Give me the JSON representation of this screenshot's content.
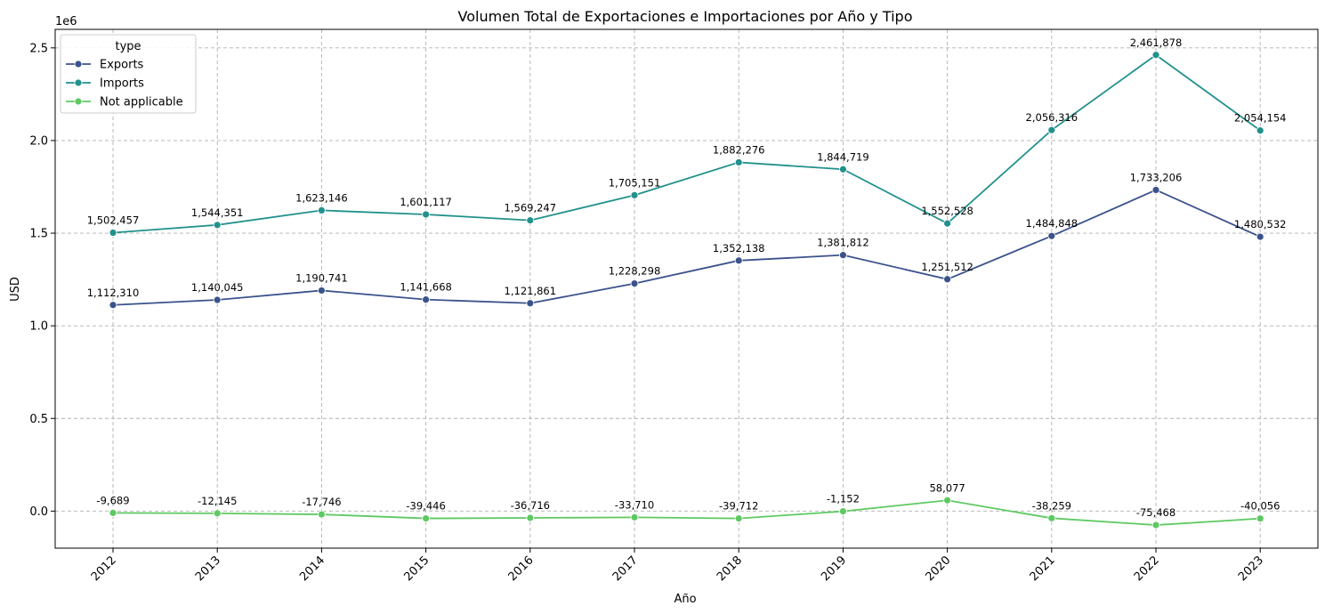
{
  "chart_data": {
    "type": "line",
    "title": "Volumen Total de Exportaciones e Importaciones por Año y Tipo",
    "xlabel": "Año",
    "ylabel": "USD",
    "y_offset_label": "1e6",
    "categories": [
      "2012",
      "2013",
      "2014",
      "2015",
      "2016",
      "2017",
      "2018",
      "2019",
      "2020",
      "2021",
      "2022",
      "2023"
    ],
    "ylim": [
      -200000,
      2600000
    ],
    "y_ticks": [
      0,
      500000,
      1000000,
      1500000,
      2000000,
      2500000
    ],
    "y_tick_labels": [
      "0.0",
      "0.5",
      "1.0",
      "1.5",
      "2.0",
      "2.5"
    ],
    "grid": true,
    "legend": {
      "title": "type",
      "placement": "top-left"
    },
    "series": [
      {
        "name": "Exports",
        "color": "#3b528b",
        "values": [
          1112310,
          1140045,
          1190741,
          1141668,
          1121861,
          1228298,
          1352138,
          1381812,
          1251512,
          1484848,
          1733206,
          1480532
        ],
        "labels": [
          "1,112,310",
          "1,140,045",
          "1,190,741",
          "1,141,668",
          "1,121,861",
          "1,228,298",
          "1,352,138",
          "1,381,812",
          "1,251,512",
          "1,484,848",
          "1,733,206",
          "1,480,532"
        ]
      },
      {
        "name": "Imports",
        "color": "#21918c",
        "values": [
          1502457,
          1544351,
          1623146,
          1601117,
          1569247,
          1705151,
          1882276,
          1844719,
          1552528,
          2056316,
          2461878,
          2054154
        ],
        "labels": [
          "1,502,457",
          "1,544,351",
          "1,623,146",
          "1,601,117",
          "1,569,247",
          "1,705,151",
          "1,882,276",
          "1,844,719",
          "1,552,528",
          "2,056,316",
          "2,461,878",
          "2,054,154"
        ]
      },
      {
        "name": "Not applicable",
        "color": "#5ec962",
        "values": [
          -9689,
          -12145,
          -17746,
          -39446,
          -36716,
          -33710,
          -39712,
          -1152,
          58077,
          -38259,
          -75468,
          -40056
        ],
        "labels": [
          "-9,689",
          "-12,145",
          "-17,746",
          "-39,446",
          "-36,716",
          "-33,710",
          "-39,712",
          "-1,152",
          "58,077",
          "-38,259",
          "-75,468",
          "-40,056"
        ]
      }
    ]
  }
}
